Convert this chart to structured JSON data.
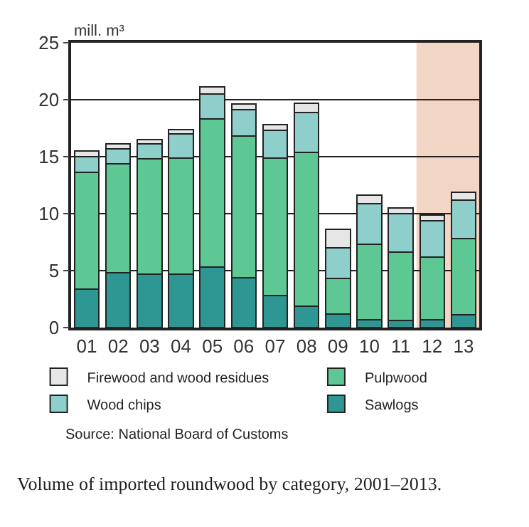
{
  "chart_data": {
    "type": "bar",
    "stacked": true,
    "ylabel": "mill. m³",
    "categories": [
      "01",
      "02",
      "03",
      "04",
      "05",
      "06",
      "07",
      "08",
      "09",
      "10",
      "11",
      "12",
      "13"
    ],
    "series": [
      {
        "name": "Sawlogs",
        "color": "#2e9693",
        "values": [
          3.4,
          4.8,
          4.7,
          4.7,
          5.3,
          4.4,
          2.8,
          1.9,
          1.2,
          0.7,
          0.6,
          0.7,
          1.1
        ]
      },
      {
        "name": "Pulpwood",
        "color": "#5ec894",
        "values": [
          10.2,
          9.6,
          10.1,
          10.2,
          13.0,
          12.4,
          12.1,
          13.5,
          3.1,
          6.6,
          6.0,
          5.5,
          6.7
        ]
      },
      {
        "name": "Wood chips",
        "color": "#8ecfcc",
        "values": [
          1.4,
          1.3,
          1.3,
          2.1,
          2.2,
          2.3,
          2.4,
          3.5,
          2.7,
          3.6,
          3.4,
          3.2,
          3.4
        ]
      },
      {
        "name": "Firewood and wood residues",
        "color": "#e6e6e6",
        "values": [
          0.5,
          0.4,
          0.4,
          0.4,
          0.6,
          0.5,
          0.5,
          0.8,
          1.6,
          0.7,
          0.5,
          0.5,
          0.7
        ]
      }
    ],
    "ylim": [
      0,
      25
    ],
    "yticks": [
      0,
      5,
      10,
      15,
      20,
      25
    ],
    "grid": "y",
    "legend": "bottom",
    "bands": [
      {
        "axis": "x",
        "from": "12",
        "to": "13",
        "color": "#f2d5c4"
      }
    ],
    "annotations": [
      "Source: National Board of Customs",
      "Volume of imported roundwood by category, 2001–2013."
    ]
  }
}
